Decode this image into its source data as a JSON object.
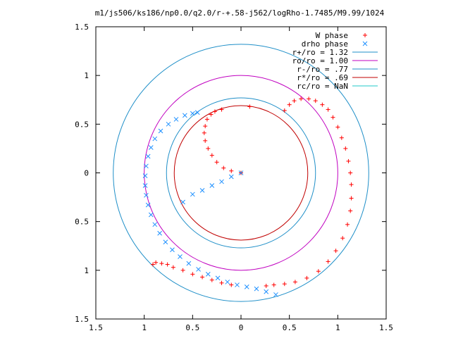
{
  "chart_data": {
    "type": "scatter",
    "title": "m1/js506/ks186/np0.0/q2.0/r-+.58-j562/logRho-1.7485/M9.99/1024",
    "xlabel": "",
    "ylabel": "",
    "xlim": [
      -1.5,
      1.5
    ],
    "ylim": [
      -1.5,
      1.5
    ],
    "xtick_values": [
      -1.5,
      -1,
      -0.5,
      0,
      0.5,
      1,
      1.5
    ],
    "ytick_values": [
      -1.5,
      -1,
      -0.5,
      0,
      0.5,
      1,
      1.5
    ],
    "xtick_labels": [
      "1.5",
      "1",
      "0.5",
      "0",
      "0.5",
      "1",
      "1.5"
    ],
    "ytick_labels": [
      "1.5",
      "1",
      "0.5",
      "0",
      "0.5",
      "1",
      "1.5"
    ],
    "grid": false,
    "legend_position": "top-right",
    "series": [
      {
        "name": "W phase",
        "kind": "points",
        "marker": "+",
        "color": "#ff0000",
        "points": [
          [
            0.09,
            0.68
          ],
          [
            -0.2,
            0.65
          ],
          [
            -0.27,
            0.63
          ],
          [
            -0.31,
            0.6
          ],
          [
            -0.35,
            0.55
          ],
          [
            -0.37,
            0.48
          ],
          [
            -0.38,
            0.41
          ],
          [
            -0.37,
            0.33
          ],
          [
            -0.34,
            0.25
          ],
          [
            -0.3,
            0.18
          ],
          [
            -0.25,
            0.11
          ],
          [
            -0.18,
            0.05
          ],
          [
            -0.1,
            0.02
          ],
          [
            0.0,
            0.0
          ],
          [
            0.45,
            0.64
          ],
          [
            0.5,
            0.7
          ],
          [
            0.55,
            0.74
          ],
          [
            0.62,
            0.76
          ],
          [
            0.7,
            0.76
          ],
          [
            0.77,
            0.74
          ],
          [
            0.84,
            0.7
          ],
          [
            0.9,
            0.65
          ],
          [
            0.95,
            0.57
          ],
          [
            1.0,
            0.47
          ],
          [
            1.04,
            0.36
          ],
          [
            1.08,
            0.25
          ],
          [
            1.11,
            0.12
          ],
          [
            1.13,
            0.0
          ],
          [
            1.14,
            -0.12
          ],
          [
            1.14,
            -0.26
          ],
          [
            1.13,
            -0.39
          ],
          [
            1.1,
            -0.53
          ],
          [
            1.05,
            -0.67
          ],
          [
            0.98,
            -0.8
          ],
          [
            0.9,
            -0.91
          ],
          [
            0.8,
            -1.01
          ],
          [
            0.68,
            -1.08
          ],
          [
            0.56,
            -1.12
          ],
          [
            0.45,
            -1.14
          ],
          [
            0.34,
            -1.15
          ],
          [
            0.26,
            -1.16
          ],
          [
            -0.1,
            -1.15
          ],
          [
            -0.2,
            -1.13
          ],
          [
            -0.3,
            -1.1
          ],
          [
            -0.4,
            -1.07
          ],
          [
            -0.5,
            -1.04
          ],
          [
            -0.6,
            -1.0
          ],
          [
            -0.7,
            -0.97
          ],
          [
            -0.76,
            -0.94
          ],
          [
            -0.82,
            -0.93
          ],
          [
            -0.88,
            -0.92
          ],
          [
            -0.91,
            -0.94
          ]
        ]
      },
      {
        "name": "drho phase",
        "kind": "points",
        "marker": "x",
        "color": "#1e90ff",
        "points": [
          [
            0.0,
            0.0
          ],
          [
            -0.1,
            -0.04
          ],
          [
            -0.2,
            -0.09
          ],
          [
            -0.3,
            -0.13
          ],
          [
            -0.4,
            -0.18
          ],
          [
            -0.5,
            -0.22
          ],
          [
            -0.6,
            -0.3
          ],
          [
            -0.45,
            0.62
          ],
          [
            -0.5,
            0.61
          ],
          [
            -0.58,
            0.59
          ],
          [
            -0.67,
            0.55
          ],
          [
            -0.75,
            0.5
          ],
          [
            -0.83,
            0.43
          ],
          [
            -0.89,
            0.35
          ],
          [
            -0.93,
            0.26
          ],
          [
            -0.96,
            0.17
          ],
          [
            -0.98,
            0.07
          ],
          [
            -0.99,
            -0.03
          ],
          [
            -0.99,
            -0.13
          ],
          [
            -0.98,
            -0.23
          ],
          [
            -0.96,
            -0.33
          ],
          [
            -0.93,
            -0.43
          ],
          [
            -0.89,
            -0.53
          ],
          [
            -0.84,
            -0.62
          ],
          [
            -0.78,
            -0.71
          ],
          [
            -0.71,
            -0.79
          ],
          [
            -0.63,
            -0.86
          ],
          [
            -0.54,
            -0.93
          ],
          [
            -0.44,
            -0.99
          ],
          [
            -0.34,
            -1.04
          ],
          [
            -0.24,
            -1.08
          ],
          [
            -0.14,
            -1.12
          ],
          [
            -0.04,
            -1.15
          ],
          [
            0.06,
            -1.17
          ],
          [
            0.16,
            -1.19
          ],
          [
            0.26,
            -1.22
          ],
          [
            0.36,
            -1.25
          ]
        ]
      },
      {
        "name": "r+/ro = 1.32",
        "kind": "circle",
        "radius": 1.32,
        "color": "#1f8fc8"
      },
      {
        "name": "ro/ro = 1.00",
        "kind": "circle",
        "radius": 1.0,
        "color": "#c000c0"
      },
      {
        "name": "r-/ro = .77",
        "kind": "circle",
        "radius": 0.77,
        "color": "#1f8fc8"
      },
      {
        "name": "r*/ro = .69",
        "kind": "circle",
        "radius": 0.69,
        "color": "#c00000"
      },
      {
        "name": "rc/ro = NaN",
        "kind": "circle",
        "radius": null,
        "color": "#20c8c8"
      }
    ]
  }
}
